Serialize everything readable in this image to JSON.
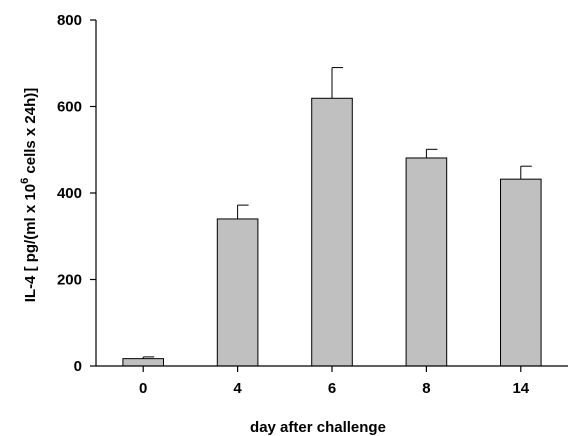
{
  "chart_data": {
    "type": "bar",
    "categories": [
      "0",
      "4",
      "6",
      "8",
      "14"
    ],
    "values": [
      17,
      340,
      619,
      481,
      432
    ],
    "errors": [
      4,
      32,
      71,
      20,
      30
    ],
    "xlabel": "day after challenge",
    "ylabel_parts": {
      "before": "IL-4 [ pg/(ml x 10",
      "superscript": "6",
      "after": " cells x 24h)]"
    },
    "ylim": [
      0,
      800
    ],
    "yticks": [
      0,
      200,
      400,
      600,
      800
    ],
    "grid": false,
    "bar_color": "#c0c0c0",
    "edge_color": "#000000"
  }
}
